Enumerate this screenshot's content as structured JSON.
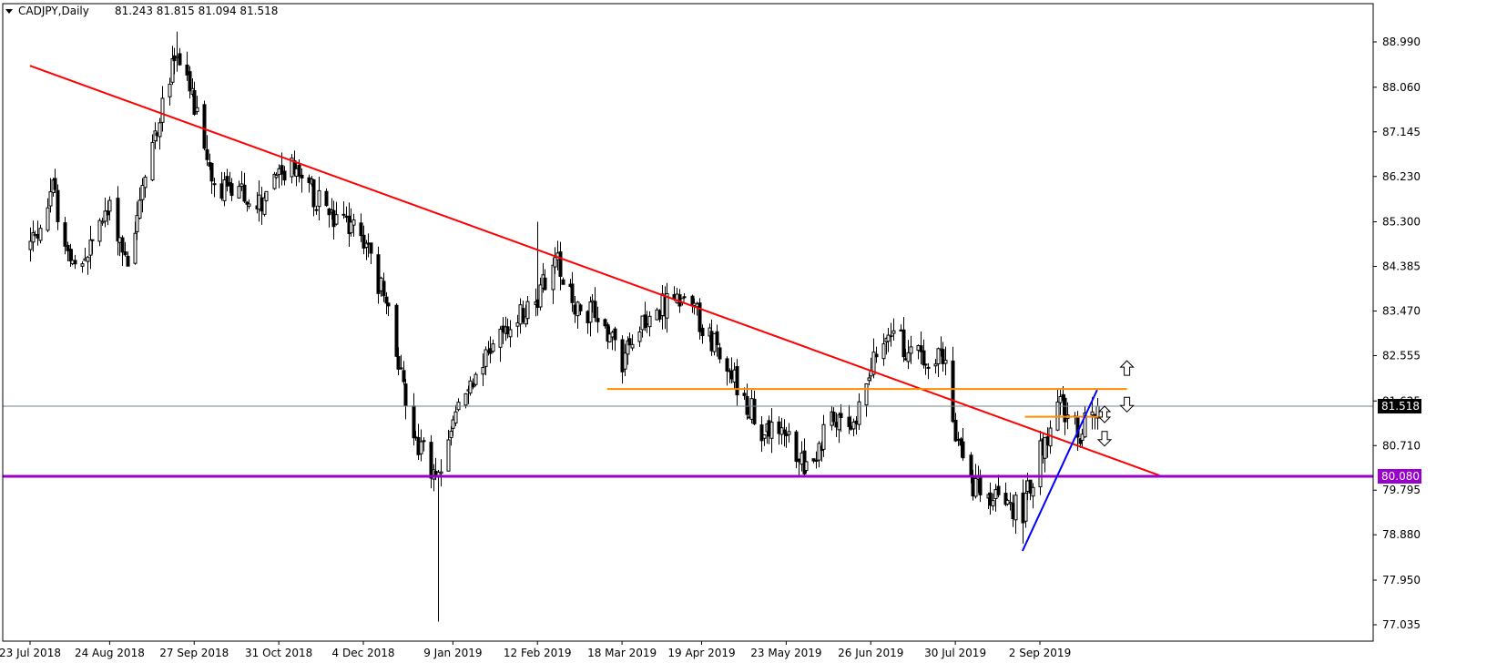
{
  "header": {
    "symbol": "CADJPY,Daily",
    "ohlc": "81.243 81.815 81.094 81.518"
  },
  "colors": {
    "background": "#ffffff",
    "frame": "#000000",
    "candle": "#000000",
    "downtrend_line": "#ff0000",
    "support_line": "#9900cc",
    "resistance_lines": "#ff8c00",
    "uptrend_line": "#0000ff",
    "current_price_line": "#708090",
    "current_price_tag_bg": "#000000",
    "current_price_tag_text": "#ffffff",
    "support_tag_bg": "#9900cc",
    "support_tag_text": "#ffffff"
  },
  "chart_data": {
    "type": "candlestick",
    "symbol": "CADJPY",
    "timeframe": "Daily",
    "y_ticks": [
      "88.990",
      "88.060",
      "87.145",
      "86.230",
      "85.300",
      "84.385",
      "83.470",
      "82.555",
      "81.625",
      "80.710",
      "79.795",
      "78.880",
      "77.950",
      "77.035"
    ],
    "ylim": [
      76.8,
      89.35
    ],
    "x_ticks": [
      "23 Jul 2018",
      "24 Aug 2018",
      "27 Sep 2018",
      "31 Oct 2018",
      "4 Dec 2018",
      "9 Jan 2019",
      "12 Feb 2019",
      "18 Mar 2019",
      "19 Apr 2019",
      "23 May 2019",
      "26 Jun 2019",
      "30 Jul 2019",
      "2 Sep 2019"
    ],
    "current_price": 81.518,
    "current_price_label": "81.518",
    "support_level": 80.08,
    "support_label": "80.080",
    "price_path": [
      {
        "date": "23 Jul 2018",
        "price": 84.8
      },
      {
        "date": "1 Aug 2018",
        "price": 85.9
      },
      {
        "date": "10 Aug 2018",
        "price": 84.2
      },
      {
        "date": "24 Aug 2018",
        "price": 85.6
      },
      {
        "date": "31 Aug 2018",
        "price": 84.5
      },
      {
        "date": "10 Sep 2018",
        "price": 86.9
      },
      {
        "date": "20 Sep 2018",
        "price": 88.8
      },
      {
        "date": "27 Sep 2018",
        "price": 87.6
      },
      {
        "date": "5 Oct 2018",
        "price": 86.0
      },
      {
        "date": "15 Oct 2018",
        "price": 85.9
      },
      {
        "date": "25 Oct 2018",
        "price": 85.6
      },
      {
        "date": "31 Oct 2018",
        "price": 86.4
      },
      {
        "date": "8 Nov 2018",
        "price": 86.3
      },
      {
        "date": "20 Nov 2018",
        "price": 85.4
      },
      {
        "date": "4 Dec 2018",
        "price": 85.0
      },
      {
        "date": "14 Dec 2018",
        "price": 83.4
      },
      {
        "date": "24 Dec 2018",
        "price": 81.0
      },
      {
        "date": "3 Jan 2019",
        "price": 79.9
      },
      {
        "date": "9 Jan 2019",
        "price": 81.3
      },
      {
        "date": "20 Jan 2019",
        "price": 82.4
      },
      {
        "date": "1 Feb 2019",
        "price": 83.2
      },
      {
        "date": "12 Feb 2019",
        "price": 83.8
      },
      {
        "date": "20 Feb 2019",
        "price": 84.5
      },
      {
        "date": "28 Feb 2019",
        "price": 83.5
      },
      {
        "date": "8 Mar 2019",
        "price": 83.4
      },
      {
        "date": "18 Mar 2019",
        "price": 82.4
      },
      {
        "date": "25 Mar 2019",
        "price": 83.3
      },
      {
        "date": "5 Apr 2019",
        "price": 83.6
      },
      {
        "date": "12 Apr 2019",
        "price": 83.8
      },
      {
        "date": "19 Apr 2019",
        "price": 83.2
      },
      {
        "date": "1 May 2019",
        "price": 82.2
      },
      {
        "date": "13 May 2019",
        "price": 81.0
      },
      {
        "date": "23 May 2019",
        "price": 80.9
      },
      {
        "date": "31 May 2019",
        "price": 80.3
      },
      {
        "date": "10 Jun 2019",
        "price": 81.2
      },
      {
        "date": "18 Jun 2019",
        "price": 80.9
      },
      {
        "date": "26 Jun 2019",
        "price": 82.5
      },
      {
        "date": "5 Jul 2019",
        "price": 83.0
      },
      {
        "date": "15 Jul 2019",
        "price": 82.5
      },
      {
        "date": "25 Jul 2019",
        "price": 82.6
      },
      {
        "date": "30 Jul 2019",
        "price": 81.0
      },
      {
        "date": "5 Aug 2019",
        "price": 79.9
      },
      {
        "date": "15 Aug 2019",
        "price": 79.6
      },
      {
        "date": "26 Aug 2019",
        "price": 79.4
      },
      {
        "date": "2 Sep 2019",
        "price": 80.6
      },
      {
        "date": "10 Sep 2019",
        "price": 81.5
      },
      {
        "date": "18 Sep 2019",
        "price": 81.0
      },
      {
        "date": "25 Sep 2019",
        "price": 81.518
      }
    ],
    "spikes": [
      {
        "date": "3 Jan 2019",
        "low": 77.1
      },
      {
        "date": "26 Aug 2019",
        "low": 78.7
      },
      {
        "date": "20 Sep 2018",
        "high": 89.2
      },
      {
        "date": "12 Feb 2019",
        "high": 85.3
      }
    ],
    "annotations": [
      {
        "name": "downtrend-line",
        "kind": "trendline",
        "from": {
          "date": "23 Jul 2018",
          "price": 88.5
        },
        "to": {
          "date": "20 Oct 2019",
          "price": 80.1
        }
      },
      {
        "name": "support-80080-line",
        "kind": "horizontal",
        "price": 80.08
      },
      {
        "name": "resistance-81870-line",
        "kind": "segment",
        "price": 81.87,
        "from": "12 Mar 2019",
        "to": "7 Oct 2019"
      },
      {
        "name": "resistance-81300-line",
        "kind": "segment",
        "price": 81.3,
        "from": "27 Aug 2019",
        "to": "26 Sep 2019"
      },
      {
        "name": "uptrend-line",
        "kind": "trendline",
        "from": {
          "date": "26 Aug 2019",
          "price": 78.55
        },
        "to": {
          "date": "25 Sep 2019",
          "price": 81.85
        }
      },
      {
        "name": "arrow-up-upper",
        "kind": "arrow",
        "direction": "up",
        "date": "7 Oct 2019",
        "price": 82.3
      },
      {
        "name": "arrow-down-upper",
        "kind": "arrow",
        "direction": "down",
        "date": "7 Oct 2019",
        "price": 81.55
      },
      {
        "name": "arrow-updown-middle",
        "kind": "arrow",
        "direction": "updown",
        "date": "28 Sep 2019",
        "price": 81.35
      },
      {
        "name": "arrow-down-lower",
        "kind": "arrow",
        "direction": "down",
        "date": "28 Sep 2019",
        "price": 80.85
      }
    ]
  }
}
